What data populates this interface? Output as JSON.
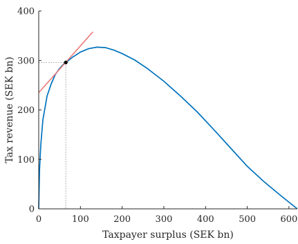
{
  "chart_data": {
    "type": "line",
    "title": "",
    "xlabel": "Taxpayer surplus (SEK bn)",
    "ylabel": "Tax revenue (SEK bn)",
    "xlim": [
      0,
      620
    ],
    "ylim": [
      0,
      400
    ],
    "xticks": [
      0,
      100,
      200,
      300,
      400,
      500,
      600
    ],
    "yticks": [
      0,
      100,
      200,
      300,
      400
    ],
    "grid": false,
    "legend": "none",
    "series": [
      {
        "color": "#0072BD",
        "x": [
          0,
          2,
          5,
          10,
          20,
          30,
          40,
          50,
          60,
          65,
          70,
          80,
          100,
          120,
          140,
          160,
          180,
          200,
          230,
          260,
          300,
          340,
          380,
          420,
          460,
          500,
          540,
          580,
          620
        ],
        "y": [
          0,
          80,
          130,
          180,
          228,
          253,
          272,
          284,
          293,
          296,
          299,
          306,
          317,
          324,
          327,
          326,
          321,
          314,
          301,
          284,
          258,
          228,
          196,
          160,
          123,
          86,
          55,
          27,
          0
        ]
      }
    ],
    "tangent_line": {
      "color": "#ee7b7b",
      "x": [
        0,
        130
      ],
      "y": [
        235,
        358
      ]
    },
    "marked_point": {
      "x": 65,
      "y": 296
    }
  }
}
